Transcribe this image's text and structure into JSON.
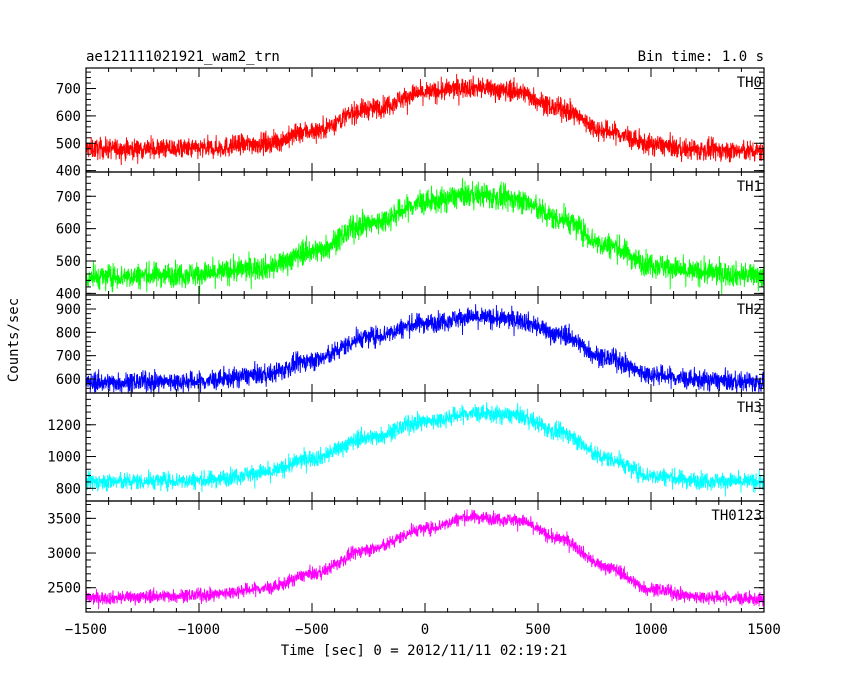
{
  "header": {
    "title": "ae121111021921_wam2_trn",
    "bin_time": "Bin time: 1.0 s"
  },
  "chart_data": {
    "type": "line",
    "xlabel": "Time [sec] 0 = 2012/11/11 02:19:21",
    "ylabel": "Counts/sec",
    "xlim": [
      -1500,
      1500
    ],
    "x_ticks": [
      -1500,
      -1000,
      -500,
      0,
      500,
      1000,
      1500
    ],
    "x_tick_labels": [
      "−1500",
      "−1000",
      "−500",
      "0",
      "500",
      "1000",
      "1500"
    ],
    "grid": false,
    "panels": [
      {
        "name": "TH0",
        "color": "#ff0000",
        "ylim": [
          395,
          775
        ],
        "y_ticks": [
          400,
          500,
          600,
          700
        ],
        "y_tick_labels": [
          "400",
          "500",
          "600",
          "700"
        ],
        "curve": [
          [
            -1500,
            480
          ],
          [
            -1000,
            480
          ],
          [
            -700,
            500
          ],
          [
            -500,
            545
          ],
          [
            -250,
            625
          ],
          [
            0,
            685
          ],
          [
            200,
            705
          ],
          [
            400,
            690
          ],
          [
            600,
            625
          ],
          [
            800,
            545
          ],
          [
            1000,
            495
          ],
          [
            1200,
            475
          ],
          [
            1500,
            470
          ]
        ],
        "noise": 38
      },
      {
        "name": "TH1",
        "color": "#00ff00",
        "ylim": [
          395,
          775
        ],
        "y_ticks": [
          400,
          500,
          600,
          700
        ],
        "y_tick_labels": [
          "400",
          "500",
          "600",
          "700"
        ],
        "curve": [
          [
            -1500,
            450
          ],
          [
            -1000,
            460
          ],
          [
            -700,
            480
          ],
          [
            -500,
            530
          ],
          [
            -250,
            615
          ],
          [
            0,
            680
          ],
          [
            200,
            705
          ],
          [
            400,
            690
          ],
          [
            600,
            630
          ],
          [
            800,
            550
          ],
          [
            1000,
            490
          ],
          [
            1200,
            465
          ],
          [
            1500,
            455
          ]
        ],
        "noise": 38
      },
      {
        "name": "TH2",
        "color": "#0000ff",
        "ylim": [
          540,
          960
        ],
        "y_ticks": [
          600,
          700,
          800,
          900
        ],
        "y_tick_labels": [
          "600",
          "700",
          "800",
          "900"
        ],
        "curve": [
          [
            -1500,
            585
          ],
          [
            -1000,
            590
          ],
          [
            -700,
            620
          ],
          [
            -500,
            680
          ],
          [
            -250,
            780
          ],
          [
            0,
            840
          ],
          [
            200,
            865
          ],
          [
            400,
            855
          ],
          [
            600,
            790
          ],
          [
            800,
            690
          ],
          [
            1000,
            620
          ],
          [
            1200,
            595
          ],
          [
            1500,
            585
          ]
        ],
        "noise": 42
      },
      {
        "name": "TH3",
        "color": "#00ffff",
        "ylim": [
          720,
          1400
        ],
        "y_ticks": [
          800,
          1000,
          1200
        ],
        "y_tick_labels": [
          "800",
          "1000",
          "1200"
        ],
        "curve": [
          [
            -1500,
            840
          ],
          [
            -1000,
            850
          ],
          [
            -700,
            900
          ],
          [
            -500,
            990
          ],
          [
            -250,
            1120
          ],
          [
            0,
            1220
          ],
          [
            200,
            1270
          ],
          [
            400,
            1260
          ],
          [
            600,
            1150
          ],
          [
            800,
            990
          ],
          [
            1000,
            880
          ],
          [
            1200,
            850
          ],
          [
            1500,
            840
          ]
        ],
        "noise": 55
      },
      {
        "name": "TH0123",
        "color": "#ff00ff",
        "ylim": [
          2150,
          3750
        ],
        "y_ticks": [
          2500,
          3000,
          3500
        ],
        "y_tick_labels": [
          "2500",
          "3000",
          "3500"
        ],
        "curve": [
          [
            -1500,
            2350
          ],
          [
            -1000,
            2390
          ],
          [
            -700,
            2490
          ],
          [
            -500,
            2700
          ],
          [
            -250,
            3050
          ],
          [
            0,
            3350
          ],
          [
            200,
            3520
          ],
          [
            400,
            3480
          ],
          [
            600,
            3200
          ],
          [
            800,
            2800
          ],
          [
            1000,
            2480
          ],
          [
            1200,
            2370
          ],
          [
            1500,
            2330
          ]
        ],
        "noise": 95
      }
    ]
  }
}
